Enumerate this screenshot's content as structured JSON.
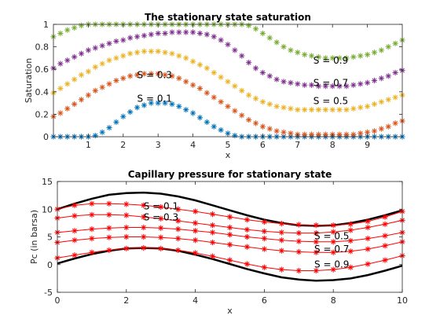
{
  "chart_data": [
    {
      "type": "scatter",
      "title": "The stationary state saturation",
      "xlabel": "x",
      "ylabel": "Saturation",
      "xlim": [
        0,
        10
      ],
      "ylim": [
        0,
        1
      ],
      "xticks": [
        1,
        2,
        3,
        4,
        5,
        6,
        7,
        8,
        9
      ],
      "yticks": [
        0,
        0.2,
        0.4,
        0.6,
        0.8,
        1
      ],
      "xtick_labels": [
        "1",
        "2",
        "3",
        "4",
        "5",
        "6",
        "7",
        "8",
        "9"
      ],
      "ytick_labels": [
        "0",
        "0.2",
        "0.4",
        "0.6",
        "0.8",
        "1"
      ],
      "marker": "asterisk",
      "grid": false,
      "series": [
        {
          "color": "#0072BD",
          "x": [
            0.0,
            0.2,
            0.4,
            0.6,
            0.8,
            1.0,
            1.2,
            1.4,
            1.6,
            1.8,
            2.0,
            2.2,
            2.4,
            2.6,
            2.8,
            3.0,
            3.2,
            3.4,
            3.6,
            3.8,
            4.0,
            4.2,
            4.4,
            4.6,
            4.8,
            5.0,
            5.2,
            5.4,
            5.6,
            5.8,
            6.0,
            6.2,
            6.4,
            6.6,
            6.8,
            7.0,
            7.2,
            7.4,
            7.6,
            7.8,
            8.0,
            8.2,
            8.4,
            8.6,
            8.8,
            9.0,
            9.2,
            9.4,
            9.6,
            9.8,
            10.0
          ],
          "y": [
            0,
            0,
            0,
            0,
            0,
            0,
            0.01,
            0.04,
            0.08,
            0.13,
            0.18,
            0.22,
            0.26,
            0.28,
            0.3,
            0.3,
            0.3,
            0.29,
            0.27,
            0.24,
            0.21,
            0.17,
            0.13,
            0.09,
            0.06,
            0.03,
            0.01,
            0,
            0,
            0,
            0,
            0,
            0,
            0,
            0,
            0,
            0,
            0,
            0,
            0,
            0,
            0,
            0,
            0,
            0,
            0,
            0,
            0,
            0,
            0,
            0
          ]
        },
        {
          "color": "#D95319",
          "x": [
            0.0,
            0.2,
            0.4,
            0.6,
            0.8,
            1.0,
            1.2,
            1.4,
            1.6,
            1.8,
            2.0,
            2.2,
            2.4,
            2.6,
            2.8,
            3.0,
            3.2,
            3.4,
            3.6,
            3.8,
            4.0,
            4.2,
            4.4,
            4.6,
            4.8,
            5.0,
            5.2,
            5.4,
            5.6,
            5.8,
            6.0,
            6.2,
            6.4,
            6.6,
            6.8,
            7.0,
            7.2,
            7.4,
            7.6,
            7.8,
            8.0,
            8.2,
            8.4,
            8.6,
            8.8,
            9.0,
            9.2,
            9.4,
            9.6,
            9.8,
            10.0
          ],
          "y": [
            0.18,
            0.21,
            0.25,
            0.29,
            0.33,
            0.37,
            0.41,
            0.44,
            0.47,
            0.5,
            0.52,
            0.54,
            0.55,
            0.56,
            0.56,
            0.56,
            0.55,
            0.54,
            0.52,
            0.49,
            0.46,
            0.43,
            0.39,
            0.35,
            0.31,
            0.27,
            0.23,
            0.19,
            0.15,
            0.12,
            0.09,
            0.07,
            0.05,
            0.04,
            0.03,
            0.02,
            0.02,
            0.02,
            0.02,
            0.02,
            0.02,
            0.02,
            0.02,
            0.02,
            0.03,
            0.04,
            0.05,
            0.07,
            0.09,
            0.12,
            0.14
          ]
        },
        {
          "color": "#EDB120",
          "x": [
            0.0,
            0.2,
            0.4,
            0.6,
            0.8,
            1.0,
            1.2,
            1.4,
            1.6,
            1.8,
            2.0,
            2.2,
            2.4,
            2.6,
            2.8,
            3.0,
            3.2,
            3.4,
            3.6,
            3.8,
            4.0,
            4.2,
            4.4,
            4.6,
            4.8,
            5.0,
            5.2,
            5.4,
            5.6,
            5.8,
            6.0,
            6.2,
            6.4,
            6.6,
            6.8,
            7.0,
            7.2,
            7.4,
            7.6,
            7.8,
            8.0,
            8.2,
            8.4,
            8.6,
            8.8,
            9.0,
            9.2,
            9.4,
            9.6,
            9.8,
            10.0
          ],
          "y": [
            0.39,
            0.43,
            0.47,
            0.51,
            0.55,
            0.58,
            0.62,
            0.65,
            0.68,
            0.7,
            0.72,
            0.74,
            0.75,
            0.76,
            0.76,
            0.76,
            0.75,
            0.74,
            0.72,
            0.7,
            0.67,
            0.64,
            0.61,
            0.57,
            0.53,
            0.49,
            0.45,
            0.41,
            0.37,
            0.34,
            0.31,
            0.29,
            0.27,
            0.26,
            0.25,
            0.24,
            0.24,
            0.24,
            0.24,
            0.24,
            0.24,
            0.24,
            0.24,
            0.25,
            0.26,
            0.27,
            0.29,
            0.31,
            0.33,
            0.35,
            0.37
          ]
        },
        {
          "color": "#7E2F8E",
          "x": [
            0.0,
            0.2,
            0.4,
            0.6,
            0.8,
            1.0,
            1.2,
            1.4,
            1.6,
            1.8,
            2.0,
            2.2,
            2.4,
            2.6,
            2.8,
            3.0,
            3.2,
            3.4,
            3.6,
            3.8,
            4.0,
            4.2,
            4.4,
            4.6,
            4.8,
            5.0,
            5.2,
            5.4,
            5.6,
            5.8,
            6.0,
            6.2,
            6.4,
            6.6,
            6.8,
            7.0,
            7.2,
            7.4,
            7.6,
            7.8,
            8.0,
            8.2,
            8.4,
            8.6,
            8.8,
            9.0,
            9.2,
            9.4,
            9.6,
            9.8,
            10.0
          ],
          "y": [
            0.61,
            0.65,
            0.68,
            0.71,
            0.74,
            0.77,
            0.79,
            0.81,
            0.83,
            0.85,
            0.86,
            0.88,
            0.89,
            0.9,
            0.91,
            0.92,
            0.92,
            0.93,
            0.93,
            0.93,
            0.93,
            0.92,
            0.91,
            0.89,
            0.86,
            0.82,
            0.77,
            0.72,
            0.66,
            0.61,
            0.57,
            0.54,
            0.51,
            0.49,
            0.48,
            0.47,
            0.46,
            0.46,
            0.45,
            0.45,
            0.45,
            0.45,
            0.45,
            0.46,
            0.47,
            0.48,
            0.5,
            0.52,
            0.54,
            0.57,
            0.59
          ]
        },
        {
          "color": "#77AC30",
          "x": [
            0.0,
            0.2,
            0.4,
            0.6,
            0.8,
            1.0,
            1.2,
            1.4,
            1.6,
            1.8,
            2.0,
            2.2,
            2.4,
            2.6,
            2.8,
            3.0,
            3.2,
            3.4,
            3.6,
            3.8,
            4.0,
            4.2,
            4.4,
            4.6,
            4.8,
            5.0,
            5.2,
            5.4,
            5.6,
            5.8,
            6.0,
            6.2,
            6.4,
            6.6,
            6.8,
            7.0,
            7.2,
            7.4,
            7.6,
            7.8,
            8.0,
            8.2,
            8.4,
            8.6,
            8.8,
            9.0,
            9.2,
            9.4,
            9.6,
            9.8,
            10.0
          ],
          "y": [
            0.89,
            0.92,
            0.95,
            0.97,
            0.99,
            1,
            1,
            1,
            1,
            1,
            1,
            1,
            1,
            1,
            1,
            1,
            1,
            1,
            1,
            1,
            1,
            1,
            1,
            1,
            1,
            1,
            1,
            1,
            0.99,
            0.96,
            0.92,
            0.88,
            0.84,
            0.8,
            0.77,
            0.75,
            0.73,
            0.72,
            0.71,
            0.7,
            0.7,
            0.7,
            0.7,
            0.71,
            0.72,
            0.73,
            0.75,
            0.77,
            0.8,
            0.83,
            0.86
          ]
        }
      ],
      "annotations": [
        {
          "text": "S = 0.1",
          "x": 2.4,
          "y": 0.31
        },
        {
          "text": "S = 0.3",
          "x": 2.4,
          "y": 0.52
        },
        {
          "text": "S = 0.5",
          "x": 7.45,
          "y": 0.29
        },
        {
          "text": "S = 0.7",
          "x": 7.45,
          "y": 0.45
        },
        {
          "text": "S = 0.9",
          "x": 7.45,
          "y": 0.65
        }
      ]
    },
    {
      "type": "line",
      "title": "Capillary pressure for stationary state",
      "xlabel": "x",
      "ylabel": "Pc (in barsa)",
      "xlim": [
        0,
        10
      ],
      "ylim": [
        -5,
        15
      ],
      "xticks": [
        0,
        2,
        4,
        6,
        8,
        10
      ],
      "yticks": [
        -5,
        0,
        5,
        10,
        15
      ],
      "xtick_labels": [
        "0",
        "2",
        "4",
        "6",
        "8",
        "10"
      ],
      "ytick_labels": [
        "-5",
        "0",
        "5",
        "10",
        "15"
      ],
      "grid": false,
      "bounds": [
        {
          "color": "#000000",
          "x": [
            0,
            0.5,
            1,
            1.5,
            2,
            2.5,
            3,
            3.5,
            4,
            4.5,
            5,
            5.5,
            6,
            6.5,
            7,
            7.5,
            8,
            8.5,
            9,
            9.5,
            10
          ],
          "y": [
            10.0,
            11.0,
            11.9,
            12.6,
            12.9,
            13.0,
            12.8,
            12.3,
            11.6,
            10.7,
            9.8,
            8.9,
            8.1,
            7.5,
            7.1,
            7.0,
            7.1,
            7.5,
            8.1,
            8.9,
            9.8
          ]
        },
        {
          "color": "#000000",
          "x": [
            0,
            0.5,
            1,
            1.5,
            2,
            2.5,
            3,
            3.5,
            4,
            4.5,
            5,
            5.5,
            6,
            6.5,
            7,
            7.5,
            8,
            8.5,
            9,
            9.5,
            10
          ],
          "y": [
            0.2,
            1.1,
            1.9,
            2.5,
            2.9,
            3.0,
            2.9,
            2.5,
            1.8,
            1.0,
            0.1,
            -0.8,
            -1.6,
            -2.3,
            -2.7,
            -2.9,
            -2.8,
            -2.5,
            -1.9,
            -1.1,
            -0.2
          ]
        }
      ],
      "series": [
        {
          "color": "#FF0000",
          "marker": "asterisk",
          "x": [
            0,
            0.5,
            1,
            1.5,
            2,
            2.5,
            3,
            3.5,
            4,
            4.5,
            5,
            5.5,
            6,
            6.5,
            7,
            7.5,
            8,
            8.5,
            9,
            9.5,
            10
          ],
          "y": [
            10.0,
            10.7,
            11.0,
            11.0,
            10.9,
            10.7,
            10.4,
            10.0,
            9.6,
            9.1,
            8.6,
            8.1,
            7.7,
            7.4,
            7.2,
            7.1,
            7.1,
            7.3,
            7.8,
            8.6,
            9.6
          ]
        },
        {
          "color": "#FF0000",
          "marker": "asterisk",
          "x": [
            0,
            0.5,
            1,
            1.5,
            2,
            2.5,
            3,
            3.5,
            4,
            4.5,
            5,
            5.5,
            6,
            6.5,
            7,
            7.5,
            8,
            8.5,
            9,
            9.5,
            10
          ],
          "y": [
            8.4,
            8.8,
            9.0,
            9.0,
            8.9,
            8.6,
            8.3,
            7.9,
            7.5,
            7.1,
            6.7,
            6.3,
            6.0,
            5.8,
            5.7,
            5.7,
            5.9,
            6.2,
            6.7,
            7.3,
            8.0
          ]
        },
        {
          "color": "#FF0000",
          "marker": "asterisk",
          "x": [
            0,
            0.5,
            1,
            1.5,
            2,
            2.5,
            3,
            3.5,
            4,
            4.5,
            5,
            5.5,
            6,
            6.5,
            7,
            7.5,
            8,
            8.5,
            9,
            9.5,
            10
          ],
          "y": [
            5.8,
            6.1,
            6.4,
            6.6,
            6.7,
            6.7,
            6.6,
            6.4,
            6.1,
            5.8,
            5.4,
            5.0,
            4.7,
            4.4,
            4.2,
            4.1,
            4.1,
            4.3,
            4.7,
            5.2,
            5.8
          ]
        },
        {
          "color": "#FF0000",
          "marker": "asterisk",
          "x": [
            0,
            0.5,
            1,
            1.5,
            2,
            2.5,
            3,
            3.5,
            4,
            4.5,
            5,
            5.5,
            6,
            6.5,
            7,
            7.5,
            8,
            8.5,
            9,
            9.5,
            10
          ],
          "y": [
            4.0,
            4.4,
            4.7,
            4.9,
            5.0,
            5.0,
            4.9,
            4.7,
            4.4,
            4.0,
            3.6,
            3.2,
            2.8,
            2.5,
            2.3,
            2.2,
            2.2,
            2.4,
            2.8,
            3.4,
            4.1
          ]
        },
        {
          "color": "#FF0000",
          "marker": "asterisk",
          "x": [
            0,
            0.5,
            1,
            1.5,
            2,
            2.5,
            3,
            3.5,
            4,
            4.5,
            5,
            5.5,
            6,
            6.5,
            7,
            7.5,
            8,
            8.5,
            9,
            9.5,
            10
          ],
          "y": [
            1.2,
            1.7,
            2.2,
            2.6,
            2.9,
            3.0,
            2.9,
            2.6,
            2.1,
            1.5,
            0.8,
            0.1,
            -0.5,
            -0.9,
            -1.1,
            -1.1,
            -0.9,
            -0.5,
            0.1,
            0.8,
            1.6
          ]
        }
      ],
      "annotations": [
        {
          "text": "S = 0.1",
          "x": 2.5,
          "y": 10.0
        },
        {
          "text": "S = 0.3",
          "x": 2.5,
          "y": 8.0
        },
        {
          "text": "S = 0.5",
          "x": 7.45,
          "y": 4.6
        },
        {
          "text": "S = 0.7",
          "x": 7.45,
          "y": 2.2
        },
        {
          "text": "S = 0.9",
          "x": 7.45,
          "y": -0.5
        }
      ]
    }
  ]
}
